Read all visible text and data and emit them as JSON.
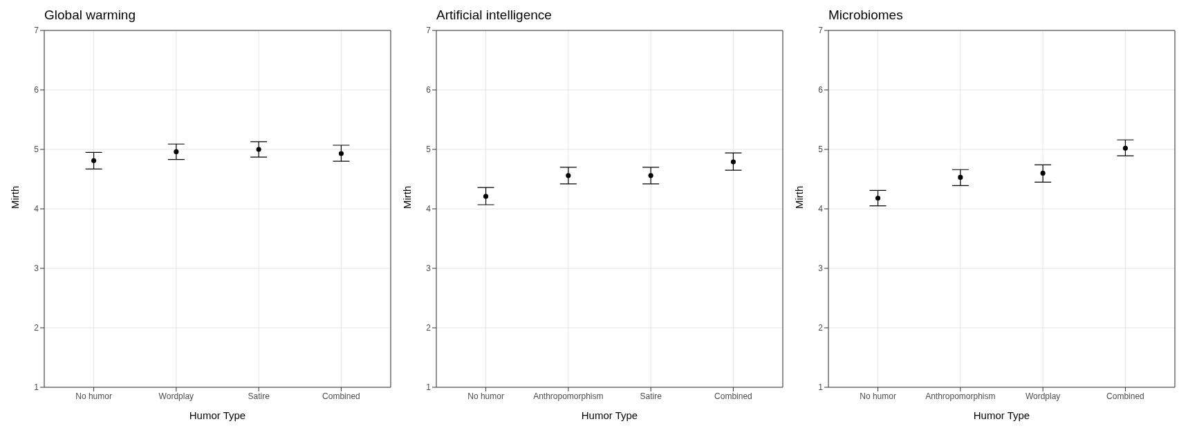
{
  "chart_data": [
    {
      "type": "scatter",
      "title": "Global warming",
      "xlabel": "Humor Type",
      "ylabel": "Mirth",
      "categories": [
        "No humor",
        "Wordplay",
        "Satire",
        "Combined"
      ],
      "values": [
        4.81,
        4.96,
        5.0,
        4.93
      ],
      "errors": [
        [
          4.67,
          4.95
        ],
        [
          4.83,
          5.09
        ],
        [
          4.87,
          5.13
        ],
        [
          4.8,
          5.07
        ]
      ],
      "color": "#000000",
      "ylim": [
        1,
        7
      ],
      "yticks": [
        1,
        2,
        3,
        4,
        5,
        6,
        7
      ],
      "grid": true,
      "marker": "circle"
    },
    {
      "type": "scatter",
      "title": "Artificial intelligence",
      "xlabel": "Humor Type",
      "ylabel": "Mirth",
      "categories": [
        "No humor",
        "Anthropomorphism",
        "Satire",
        "Combined"
      ],
      "values": [
        4.21,
        4.56,
        4.56,
        4.79
      ],
      "errors": [
        [
          4.07,
          4.36
        ],
        [
          4.42,
          4.7
        ],
        [
          4.42,
          4.7
        ],
        [
          4.65,
          4.94
        ]
      ],
      "color": "#000000",
      "ylim": [
        1,
        7
      ],
      "yticks": [
        1,
        2,
        3,
        4,
        5,
        6,
        7
      ],
      "grid": true,
      "marker": "circle"
    },
    {
      "type": "scatter",
      "title": "Microbiomes",
      "xlabel": "Humor Type",
      "ylabel": "Mirth",
      "categories": [
        "No humor",
        "Anthropomorphism",
        "Wordplay",
        "Combined"
      ],
      "values": [
        4.18,
        4.53,
        4.6,
        5.02
      ],
      "errors": [
        [
          4.05,
          4.31
        ],
        [
          4.39,
          4.66
        ],
        [
          4.45,
          4.74
        ],
        [
          4.89,
          5.16
        ]
      ],
      "color": "#000000",
      "ylim": [
        1,
        7
      ],
      "yticks": [
        1,
        2,
        3,
        4,
        5,
        6,
        7
      ],
      "grid": true,
      "marker": "circle"
    }
  ]
}
